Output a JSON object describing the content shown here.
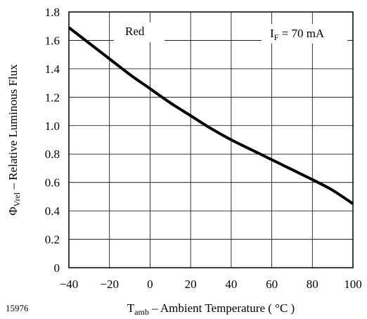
{
  "figure_id": "15976",
  "chart_data": {
    "type": "line",
    "x_axis": {
      "symbol": "T",
      "symbol_sub": "amb",
      "label": " – Ambient Temperature ( °C )",
      "range": [
        -40,
        100
      ],
      "ticks": [
        -40,
        -20,
        0,
        20,
        40,
        60,
        80,
        100
      ],
      "tick_labels": [
        "−40",
        "−20",
        "0",
        "20",
        "40",
        "60",
        "80",
        "100"
      ]
    },
    "y_axis": {
      "symbol": "Φ",
      "symbol_sub": "Vrel",
      "label": " – Relative Luminous Flux",
      "range": [
        0,
        1.8
      ],
      "ticks": [
        0,
        0.2,
        0.4,
        0.6,
        0.8,
        1.0,
        1.2,
        1.4,
        1.6,
        1.8
      ],
      "tick_labels": [
        "0",
        "0.2",
        "0.4",
        "0.6",
        "0.8",
        "1.0",
        "1.2",
        "1.4",
        "1.6",
        "1.8"
      ]
    },
    "grid": true,
    "annotations": {
      "color_label": "Red",
      "current_symbol": "I",
      "current_sub": "F",
      "current_value": " = 70 mA"
    },
    "series": [
      {
        "color": "#000000",
        "x": [
          -40,
          -30,
          -20,
          -10,
          0,
          10,
          20,
          30,
          40,
          50,
          60,
          70,
          80,
          90,
          100
        ],
        "y": [
          1.69,
          1.58,
          1.47,
          1.36,
          1.26,
          1.16,
          1.07,
          0.98,
          0.9,
          0.83,
          0.76,
          0.69,
          0.62,
          0.545,
          0.45
        ]
      }
    ]
  }
}
